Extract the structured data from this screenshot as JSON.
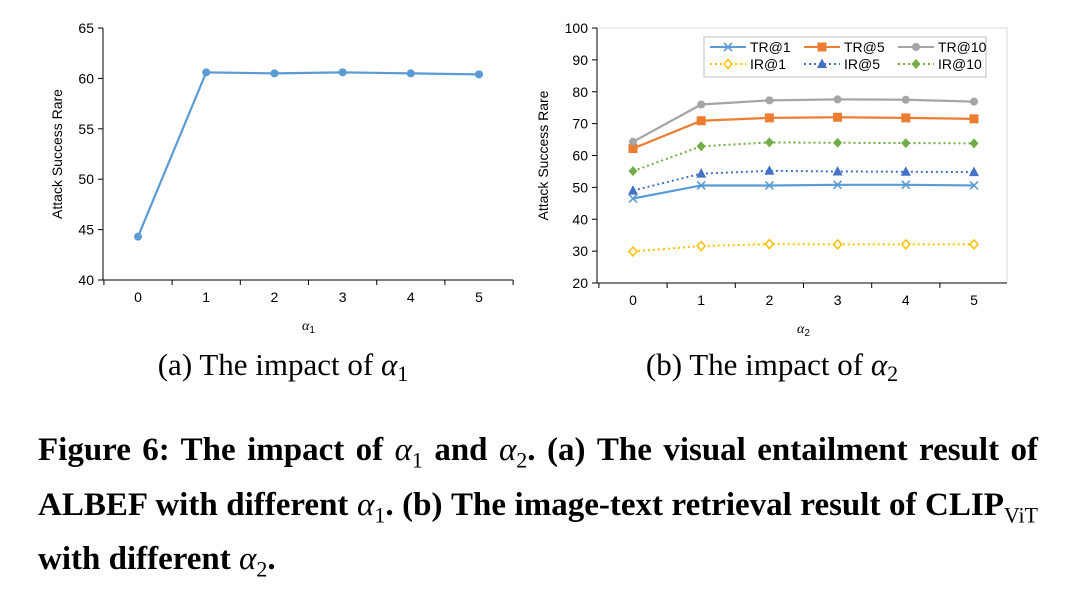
{
  "chart_data": [
    {
      "type": "line",
      "ylabel": "Attack Success Rare",
      "xlabel_symbol": "α",
      "xlabel_sub": "1",
      "xlim": [
        0,
        5
      ],
      "ylim": [
        40,
        65
      ],
      "yticks": [
        40,
        45,
        50,
        55,
        60,
        65
      ],
      "x": [
        0,
        1,
        2,
        3,
        4,
        5
      ],
      "series": [
        {
          "values": [
            44.3,
            60.6,
            60.5,
            60.6,
            60.5,
            60.4
          ],
          "color": "#5b9bd5",
          "marker": "circle",
          "dash": "solid"
        }
      ],
      "subcaption": {
        "prefix": "(a) The impact of ",
        "symbol": "α",
        "sub": "1"
      }
    },
    {
      "type": "line",
      "ylabel": "Attack Success Rare",
      "xlabel_symbol": "α",
      "xlabel_sub": "2",
      "xlim": [
        0,
        5
      ],
      "ylim": [
        20,
        100
      ],
      "yticks": [
        20,
        30,
        40,
        50,
        60,
        70,
        80,
        90,
        100
      ],
      "x": [
        0,
        1,
        2,
        3,
        4,
        5
      ],
      "legend": "top-right",
      "series": [
        {
          "name": "TR@1",
          "values": [
            46.5,
            50.6,
            50.6,
            50.8,
            50.8,
            50.6
          ],
          "color": "#5b9bd5",
          "marker": "x",
          "dash": "solid"
        },
        {
          "name": "TR@5",
          "values": [
            62.2,
            70.9,
            71.8,
            72.0,
            71.8,
            71.5
          ],
          "color": "#ed7d31",
          "marker": "square",
          "dash": "solid"
        },
        {
          "name": "TR@10",
          "values": [
            64.3,
            76.0,
            77.3,
            77.6,
            77.5,
            76.9
          ],
          "color": "#a5a5a5",
          "marker": "circle",
          "dash": "solid"
        },
        {
          "name": "IR@1",
          "values": [
            29.9,
            31.6,
            32.2,
            32.1,
            32.1,
            32.1
          ],
          "color": "#ffc000",
          "marker": "diamond-open",
          "dash": "dotted"
        },
        {
          "name": "IR@5",
          "values": [
            49.0,
            54.3,
            55.2,
            55.0,
            54.9,
            54.8
          ],
          "color": "#4472c4",
          "marker": "triangle",
          "dash": "dotted"
        },
        {
          "name": "IR@10",
          "values": [
            55.1,
            62.9,
            64.1,
            64.0,
            63.9,
            63.8
          ],
          "color": "#70ad47",
          "marker": "diamond",
          "dash": "dotted"
        }
      ],
      "subcaption": {
        "prefix": "(b) The impact of ",
        "symbol": "α",
        "sub": "2"
      }
    }
  ],
  "figure_caption": {
    "label": "Figure 6: The impact of ",
    "sym1": "α",
    "sym1_sub": "1",
    "and": " and ",
    "sym2": "α",
    "sym2_sub": "2",
    "part_a": ". (a) The visual entailment result of ALBEF with different ",
    "part_a_sym": "α",
    "part_a_sub": "1",
    "part_b": ". (b) The image-text retrieval result of CLIP",
    "part_b_sub": "ViT",
    "part_b_mid": " with different ",
    "part_b_sym": "α",
    "part_b_sym_sub": "2",
    "end": "."
  }
}
